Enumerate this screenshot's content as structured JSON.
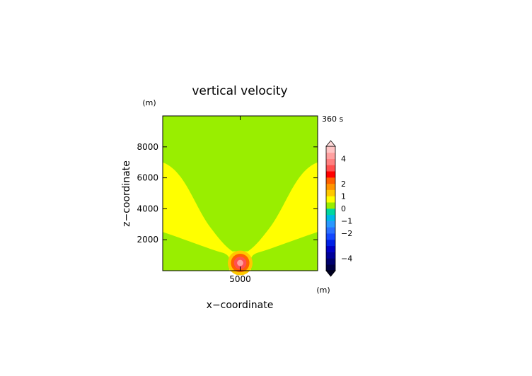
{
  "chart_data": {
    "type": "heatmap",
    "title": "vertical velocity",
    "xlabel": "x−coordinate",
    "ylabel": "z−coordinate",
    "x_unit": "(m)",
    "y_unit": "(m)",
    "time_label": "360 s",
    "xlim": [
      0,
      10000
    ],
    "ylim": [
      0,
      10000
    ],
    "x_ticks": [
      5000
    ],
    "x_tick_labels": [
      "5000"
    ],
    "y_ticks": [
      2000,
      4000,
      6000,
      8000
    ],
    "y_tick_labels": [
      "2000",
      "4000",
      "6000",
      "8000"
    ],
    "field": {
      "background_value": 0.1,
      "plume_value": 0.5,
      "plume_boundary_left": [
        [
          5000,
          0
        ],
        [
          4300,
          0
        ],
        [
          4300,
          700
        ],
        [
          4000,
          1050
        ],
        [
          0,
          2500
        ],
        [
          0,
          2500
        ]
      ],
      "plume_outer_left": [
        [
          3700,
          1500
        ],
        [
          2600,
          3200
        ],
        [
          1700,
          5500
        ],
        [
          1200,
          6500
        ],
        [
          0,
          7000
        ]
      ],
      "bubble_center": [
        5000,
        500
      ],
      "bubble_values": [
        1.0,
        2.0,
        3.0,
        4.0
      ],
      "bubble_radii": [
        800,
        600,
        400,
        200
      ]
    },
    "colorbar": {
      "levels": [
        -5,
        -4.5,
        -4,
        -3.5,
        -3,
        -2.5,
        -2,
        -1.5,
        -1,
        -0.5,
        0,
        0.5,
        1,
        1.5,
        2,
        2.5,
        3,
        3.5,
        4,
        4.5,
        5
      ],
      "colors": [
        "#000044",
        "#00006e",
        "#000099",
        "#0000c4",
        "#0020e6",
        "#1448ff",
        "#2a70ff",
        "#2a98ff",
        "#00b8e8",
        "#00d7a0",
        "#99ee00",
        "#ffff00",
        "#ffc800",
        "#ff9400",
        "#ff6000",
        "#ff0000",
        "#ff5050",
        "#ff8080",
        "#ffa0a0",
        "#ffc4c4"
      ],
      "tick_values": [
        4,
        2,
        1,
        0,
        -1,
        -2,
        -4
      ],
      "tick_labels": [
        "4",
        "2",
        "1",
        "0",
        "−1",
        "−2",
        "−4"
      ],
      "extend": "both",
      "upper_extend_color": "#ffdada",
      "lower_extend_color": "#000022"
    }
  }
}
